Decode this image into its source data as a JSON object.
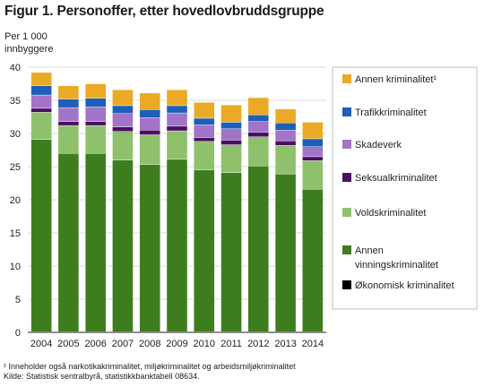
{
  "figure": {
    "title": "Figur 1. Personoffer, etter hovedlovbruddsgruppe",
    "unit_line1": "Per 1 000",
    "unit_line2": "innbyggere",
    "footnote1": "¹ Inneholder også narkotikakriminalitet, miljøkriminalitet og arbeidsmiljøkriminalitet",
    "footnote2": "Kilde: Statistisk sentralbyrå, statistikkbanktabell  08634."
  },
  "chart_data": {
    "type": "bar",
    "stacked": true,
    "categories": [
      "2004",
      "2005",
      "2006",
      "2007",
      "2008",
      "2009",
      "2010",
      "2011",
      "2012",
      "2013",
      "2014"
    ],
    "ylim": [
      0,
      40
    ],
    "yticks": [
      0,
      5,
      10,
      15,
      20,
      25,
      30,
      35,
      40
    ],
    "legend_position": "right",
    "grid": true,
    "series": [
      {
        "name": "Økonomisk kriminalitet",
        "color": "#000000",
        "values": [
          0.1,
          0.1,
          0.1,
          0.1,
          0.1,
          0.1,
          0.1,
          0.1,
          0.1,
          0.1,
          0.1
        ]
      },
      {
        "name": "Annen vinningskriminalitet",
        "name_lines": [
          "Annen",
          "vinningskriminalitet"
        ],
        "color": "#3e7d1e",
        "values": [
          29.0,
          26.9,
          26.9,
          25.9,
          25.2,
          26.0,
          24.4,
          24.0,
          25.0,
          23.8,
          21.5
        ]
      },
      {
        "name": "Voldskriminalitet",
        "color": "#8fc06c",
        "values": [
          4.1,
          4.2,
          4.2,
          4.3,
          4.5,
          4.3,
          4.3,
          4.2,
          4.4,
          4.3,
          4.3
        ]
      },
      {
        "name": "Seksualkriminalitet",
        "color": "#4b0f63",
        "values": [
          0.6,
          0.6,
          0.6,
          0.7,
          0.7,
          0.7,
          0.6,
          0.7,
          0.7,
          0.7,
          0.6
        ]
      },
      {
        "name": "Skadeverk",
        "color": "#a274c8",
        "values": [
          2.0,
          2.1,
          2.2,
          2.0,
          1.9,
          2.0,
          1.9,
          1.7,
          1.6,
          1.6,
          1.5
        ]
      },
      {
        "name": "Trafikkriminalitet",
        "color": "#1d5fb8",
        "values": [
          1.4,
          1.3,
          1.3,
          1.2,
          1.2,
          1.1,
          1.0,
          1.0,
          1.0,
          1.1,
          1.2
        ]
      },
      {
        "name": "Annen kriminalitet¹",
        "color": "#eaaa25",
        "values": [
          2.0,
          2.0,
          2.2,
          2.4,
          2.5,
          2.4,
          2.4,
          2.6,
          2.6,
          2.1,
          2.5
        ]
      }
    ]
  }
}
